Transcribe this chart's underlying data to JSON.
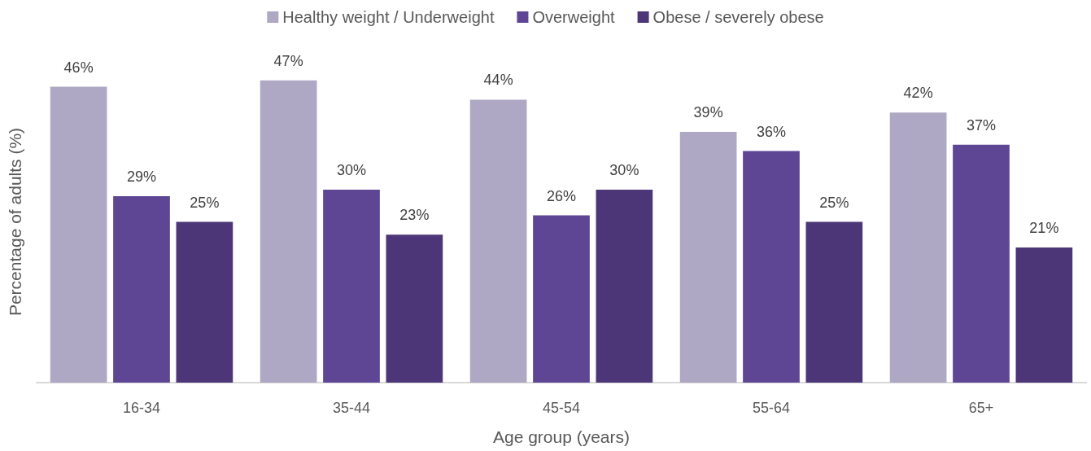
{
  "chart_data": {
    "type": "bar",
    "xlabel": "Age group (years)",
    "ylabel": "Percentage of adults (%)",
    "categories": [
      "16-34",
      "35-44",
      "45-54",
      "55-64",
      "65+"
    ],
    "series": [
      {
        "name": "Healthy weight / Underweight",
        "color": "#aea8c4",
        "values": [
          46,
          47,
          44,
          39,
          42
        ],
        "value_labels": [
          "46%",
          "47%",
          "44%",
          "39%",
          "42%"
        ]
      },
      {
        "name": "Overweight",
        "color": "#5e4694",
        "values": [
          29,
          30,
          26,
          36,
          37
        ],
        "value_labels": [
          "29%",
          "30%",
          "26%",
          "36%",
          "37%"
        ]
      },
      {
        "name": "Obese / severely obese",
        "color": "#4d3678",
        "values": [
          25,
          23,
          30,
          25,
          21
        ],
        "value_labels": [
          "25%",
          "23%",
          "30%",
          "25%",
          "21%"
        ]
      }
    ],
    "legend": "top",
    "tick_labels": "x"
  }
}
